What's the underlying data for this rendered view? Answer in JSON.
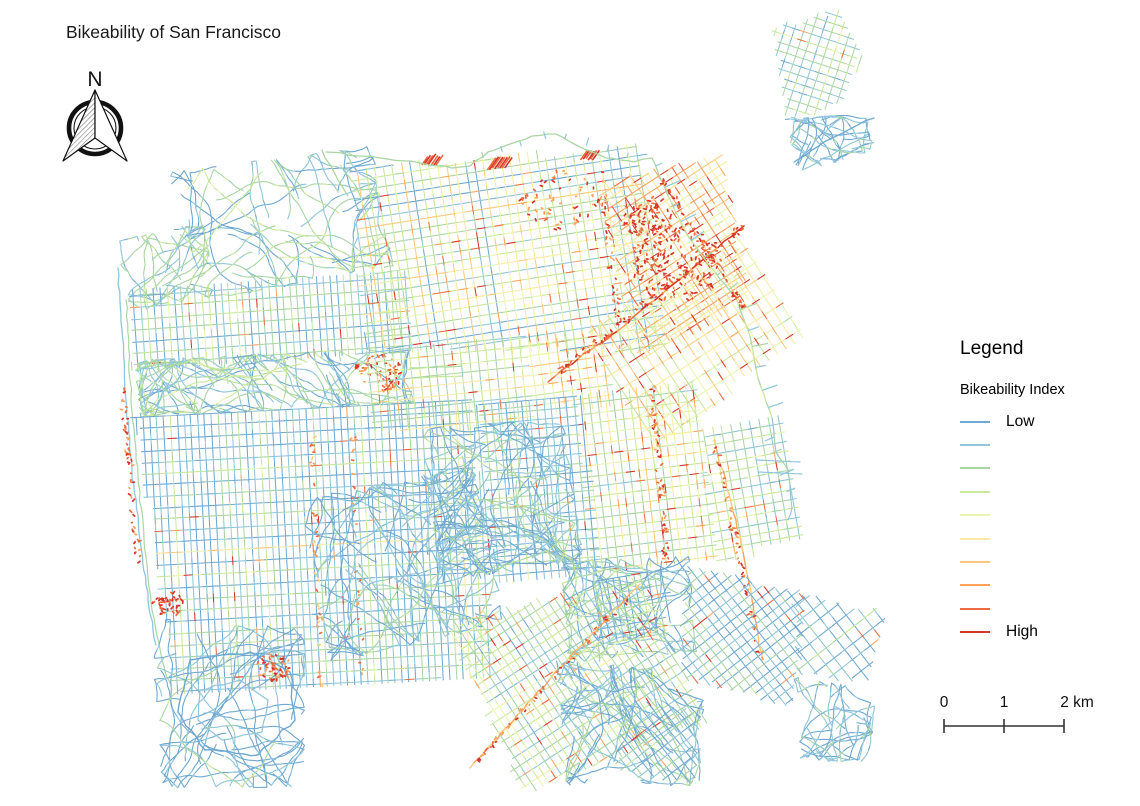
{
  "title": "Bikeability of San Francisco",
  "north_arrow": {
    "label": "N"
  },
  "legend": {
    "title": "Legend",
    "layer_title": "Bikeability Index",
    "classes": [
      {
        "label": "Low",
        "color": "#6fa8d1"
      },
      {
        "label": "",
        "color": "#8fc6da"
      },
      {
        "label": "",
        "color": "#a9d7a2"
      },
      {
        "label": "",
        "color": "#c9e89b"
      },
      {
        "label": "",
        "color": "#e9f6b1"
      },
      {
        "label": "",
        "color": "#fee9a2"
      },
      {
        "label": "",
        "color": "#fdca7d"
      },
      {
        "label": "",
        "color": "#fba35d"
      },
      {
        "label": "",
        "color": "#ec6a40"
      },
      {
        "label": "High",
        "color": "#d7342b"
      }
    ]
  },
  "scale_bar": {
    "ticks": [
      "0",
      "1",
      "2 km"
    ]
  }
}
